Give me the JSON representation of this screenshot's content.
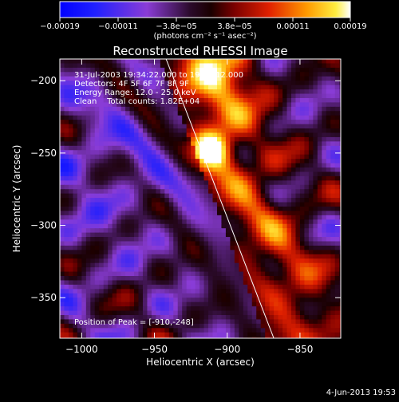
{
  "chart_data": {
    "type": "heatmap",
    "title": "Reconstructed RHESSI Image",
    "xlabel": "Heliocentric X (arcsec)",
    "ylabel": "Heliocentric Y (arcsec)",
    "xlim": [
      -1015,
      -822
    ],
    "ylim": [
      -378,
      -185
    ],
    "x_ticks": [
      {
        "value": -1000,
        "label": "−1000"
      },
      {
        "value": -950,
        "label": "−950"
      },
      {
        "value": -900,
        "label": "−900"
      },
      {
        "value": -850,
        "label": "−850"
      }
    ],
    "y_ticks": [
      {
        "value": -200,
        "label": "−200"
      },
      {
        "value": -250,
        "label": "−250"
      },
      {
        "value": -300,
        "label": "−300"
      },
      {
        "value": -350,
        "label": "−350"
      }
    ],
    "colorbar": {
      "range": [
        -0.00019,
        0.00019
      ],
      "tick_labels": [
        "−0.00019",
        "−0.00011",
        "−3.8e−05",
        "3.8e−05",
        "0.00011",
        "0.00019"
      ],
      "unit_label": "(photons cm⁻² s⁻¹ asec⁻²)"
    },
    "annotations": [
      "31-Jul-2003 19:34:22.000 to 19:39:12.000",
      "Detectors: 4F 5F 6F 7F 8F 9F",
      "Energy Range: 12.0 - 25.0 keV",
      "Clean    Total counts: 1.82E+04"
    ],
    "peak_label": "Position of Peak = [-910,-248]",
    "peak": {
      "x": -910,
      "y": -248
    },
    "limb_line": [
      {
        "x": -942,
        "y": -185
      },
      {
        "x": -868,
        "y": -378
      }
    ],
    "footer_date": "4-Jun-2013 19:53"
  }
}
